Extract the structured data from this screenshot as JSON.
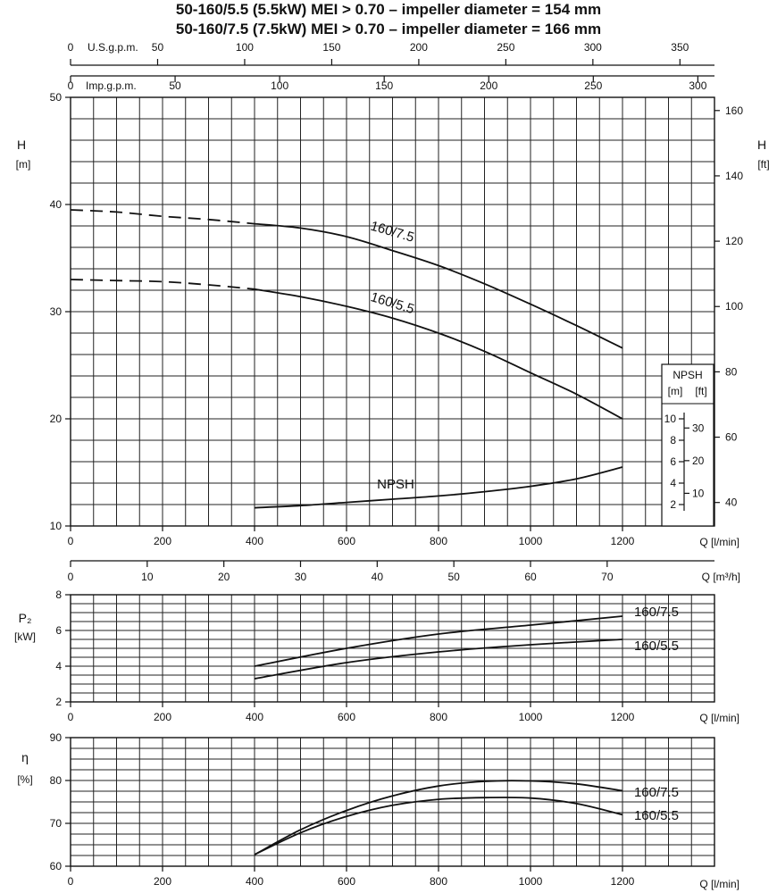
{
  "titles": [
    "50-160/5.5 (5.5kW) MEI > 0.70 – impeller diameter = 154 mm",
    "50-160/7.5 (7.5kW) MEI > 0.70 – impeller diameter = 166 mm"
  ],
  "chart_data": [
    {
      "type": "line",
      "panel": "head",
      "ylabel": "H",
      "yunit": "[m]",
      "ylabel_right": "H",
      "yunit_right": "[ft]",
      "xlabel": "Q [l/min]",
      "xlim": [
        0,
        1400
      ],
      "ylim": [
        10,
        50
      ],
      "x_ticks": [
        0,
        200,
        400,
        600,
        800,
        1000,
        1200
      ],
      "y_ticks": [
        10,
        20,
        30,
        40,
        50
      ],
      "y_ticks_ft": [
        40,
        60,
        80,
        100,
        120,
        140,
        160
      ],
      "grid": true,
      "top_axis_usgpm": {
        "label": "U.S.g.p.m.",
        "ticks": [
          0,
          50,
          100,
          150,
          200,
          250,
          300,
          350
        ]
      },
      "top_axis_impgpm": {
        "label": "Imp.g.p.m.",
        "ticks": [
          0,
          50,
          100,
          150,
          200,
          250,
          300
        ]
      },
      "bottom_axis_m3h": {
        "label": "Q [m³/h]",
        "ticks": [
          0,
          10,
          20,
          30,
          40,
          50,
          60,
          70
        ]
      },
      "series": [
        {
          "name": "160/7.5",
          "dashed": {
            "x": [
              0,
              100,
              200,
              300,
              400
            ],
            "y": [
              39.5,
              39.3,
              38.9,
              38.6,
              38.2
            ]
          },
          "solid": {
            "x": [
              400,
              500,
              600,
              700,
              800,
              900,
              1000,
              1100,
              1200
            ],
            "y": [
              38.2,
              37.8,
              37.0,
              35.7,
              34.3,
              32.6,
              30.7,
              28.7,
              26.6
            ]
          }
        },
        {
          "name": "160/5.5",
          "dashed": {
            "x": [
              0,
              100,
              200,
              300,
              400
            ],
            "y": [
              33.0,
              32.9,
              32.8,
              32.5,
              32.1
            ]
          },
          "solid": {
            "x": [
              400,
              500,
              600,
              700,
              800,
              900,
              1000,
              1100,
              1200
            ],
            "y": [
              32.1,
              31.4,
              30.5,
              29.4,
              28.0,
              26.3,
              24.3,
              22.3,
              20.0
            ]
          }
        },
        {
          "name": "NPSH",
          "solid": {
            "x": [
              400,
              500,
              600,
              700,
              800,
              900,
              1000,
              1100,
              1200
            ],
            "y": [
              11.7,
              11.9,
              12.2,
              12.5,
              12.8,
              13.2,
              13.7,
              14.4,
              15.5
            ]
          }
        }
      ],
      "npsh_scale": {
        "header": "NPSH",
        "unit_m": "[m]",
        "unit_ft": "[ft]",
        "ticks_m": [
          2,
          4,
          6,
          8,
          10
        ],
        "ticks_ft": [
          10,
          20,
          30
        ]
      }
    },
    {
      "type": "line",
      "panel": "power",
      "ylabel": "P₂",
      "yunit": "[kW]",
      "xlabel": "Q [l/min]",
      "xlim": [
        0,
        1400
      ],
      "ylim": [
        2,
        8
      ],
      "x_ticks": [
        0,
        200,
        400,
        600,
        800,
        1000,
        1200
      ],
      "y_ticks": [
        2,
        4,
        6,
        8
      ],
      "grid": true,
      "series": [
        {
          "name": "160/7.5",
          "x": [
            400,
            600,
            800,
            1000,
            1200
          ],
          "y": [
            4.0,
            5.0,
            5.8,
            6.3,
            6.8
          ]
        },
        {
          "name": "160/5.5",
          "x": [
            400,
            600,
            800,
            1000,
            1200
          ],
          "y": [
            3.3,
            4.2,
            4.8,
            5.2,
            5.5
          ]
        }
      ]
    },
    {
      "type": "line",
      "panel": "efficiency",
      "ylabel": "η",
      "yunit": "[%]",
      "xlabel": "Q [l/min]",
      "xlim": [
        0,
        1400
      ],
      "ylim": [
        60,
        90
      ],
      "x_ticks": [
        0,
        200,
        400,
        600,
        800,
        1000,
        1200
      ],
      "y_ticks": [
        60,
        70,
        80,
        90
      ],
      "grid": true,
      "series": [
        {
          "name": "160/7.5",
          "x": [
            400,
            500,
            600,
            700,
            800,
            900,
            1000,
            1100,
            1200
          ],
          "y": [
            62.7,
            68.5,
            73.0,
            76.4,
            78.7,
            79.8,
            79.9,
            79.2,
            77.6
          ]
        },
        {
          "name": "160/5.5",
          "x": [
            400,
            500,
            600,
            700,
            800,
            900,
            1000,
            1100,
            1200
          ],
          "y": [
            62.7,
            67.8,
            71.6,
            74.2,
            75.6,
            76.0,
            75.9,
            74.6,
            72.0
          ]
        }
      ]
    }
  ]
}
